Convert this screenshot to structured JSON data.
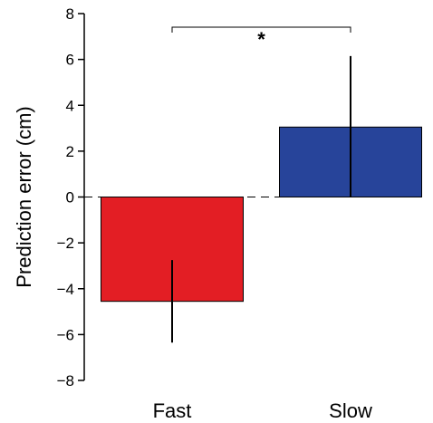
{
  "chart_data": {
    "type": "bar",
    "categories": [
      "Fast",
      "Slow"
    ],
    "values": [
      -4.55,
      3.05
    ],
    "error_bars": [
      {
        "low": -6.35,
        "high": -2.75
      },
      {
        "low": 0.0,
        "high": 6.15
      }
    ],
    "colors": [
      "#e31e24",
      "#27449a"
    ],
    "ylabel": "Prediction error (cm)",
    "ylim": [
      -8,
      8
    ],
    "yticks": [
      -8,
      -6,
      -4,
      -2,
      0,
      2,
      4,
      6,
      8
    ],
    "ytick_labels": [
      "−8",
      "−6",
      "−4",
      "−2",
      "0",
      "2",
      "4",
      "6",
      "8"
    ],
    "zero_line": "dashed",
    "grid": false,
    "significance": {
      "from": "Fast",
      "to": "Slow",
      "label": "*"
    }
  }
}
